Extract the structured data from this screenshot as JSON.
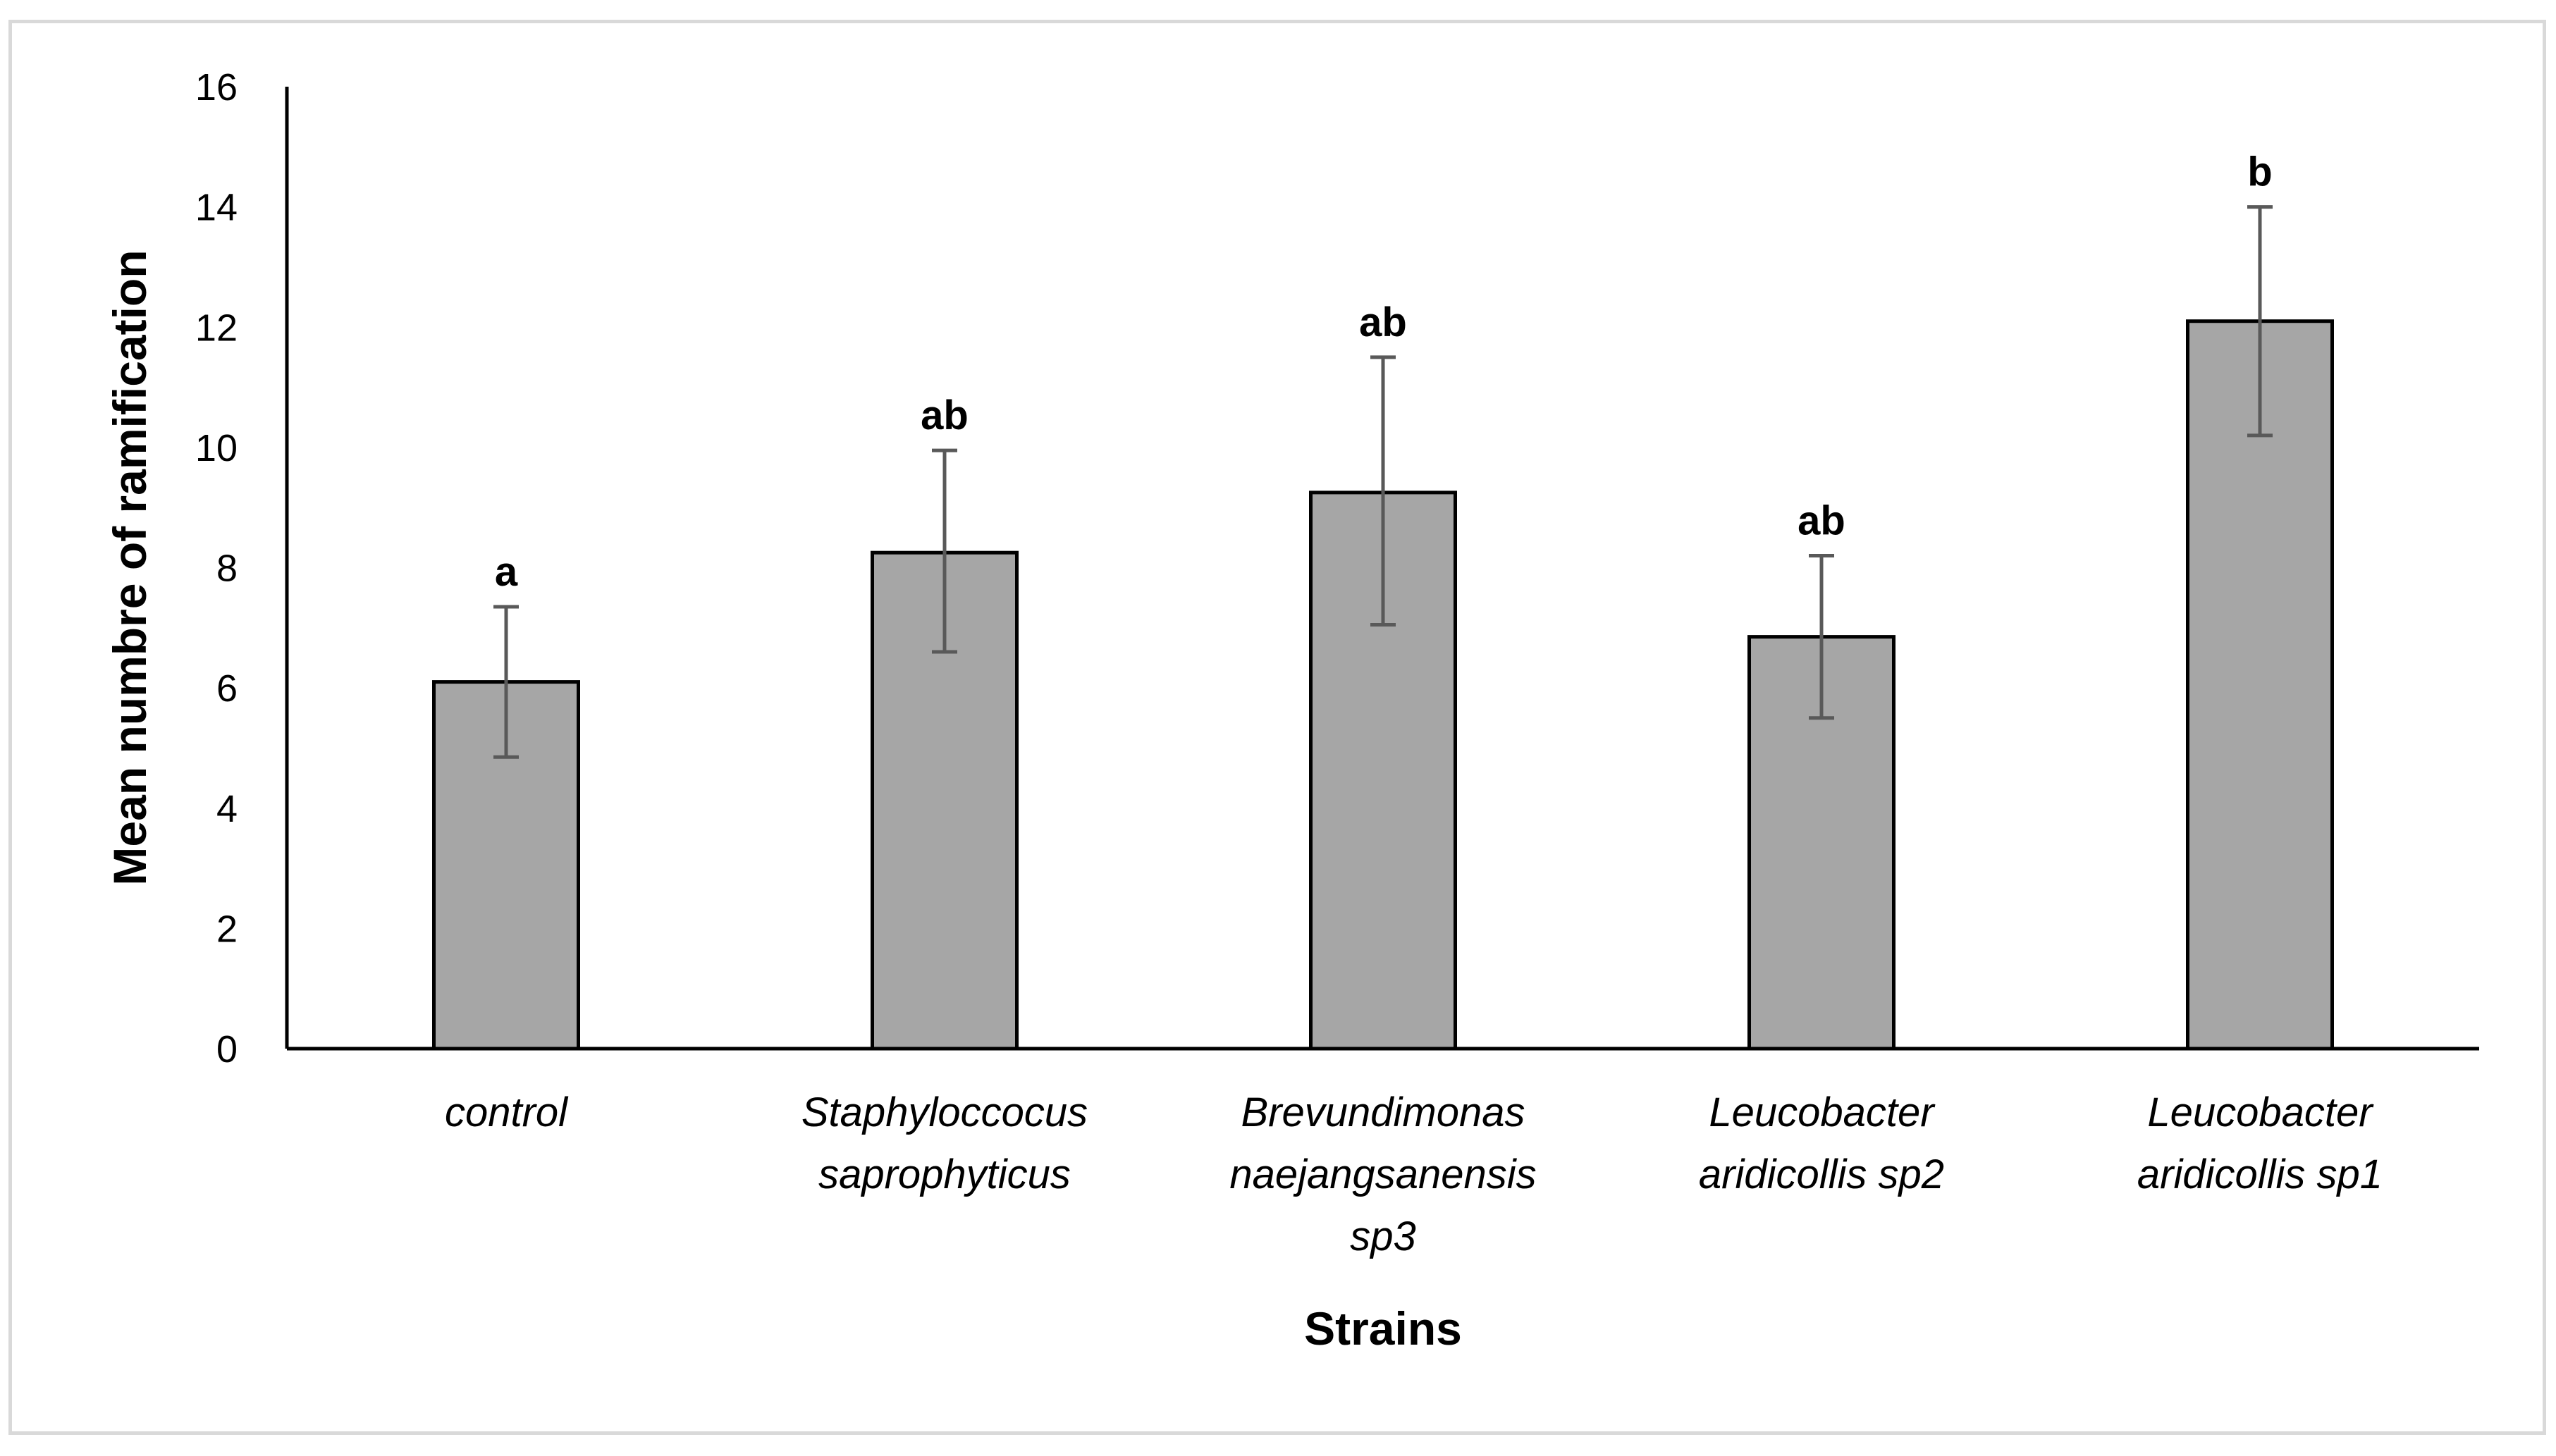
{
  "chart_data": {
    "type": "bar",
    "xlabel": "Strains",
    "ylabel": "Mean numbre of ramification",
    "ylim": [
      0,
      16
    ],
    "yticks": [
      0,
      2,
      4,
      6,
      8,
      10,
      12,
      14,
      16
    ],
    "grid": false,
    "legend": "none",
    "bar_color": "#a6a6a6",
    "bar_edge_color": "#000000",
    "errorbar_color": "#595959",
    "categories": [
      [
        "control"
      ],
      [
        "Staphyloccocus",
        "saprophyticus"
      ],
      [
        "Brevundimonas",
        "naejangsanensis",
        "sp3"
      ],
      [
        "Leucobacter",
        "aridicollis sp2"
      ],
      [
        "Leucobacter",
        "aridicollis sp1"
      ]
    ],
    "values": [
      6.1,
      8.25,
      9.25,
      6.85,
      12.1
    ],
    "error_lower": [
      4.85,
      6.6,
      7.05,
      5.5,
      10.2
    ],
    "error_upper": [
      7.35,
      9.95,
      11.5,
      8.2,
      14.0
    ],
    "significance": [
      "a",
      "ab",
      "ab",
      "ab",
      "b"
    ]
  }
}
